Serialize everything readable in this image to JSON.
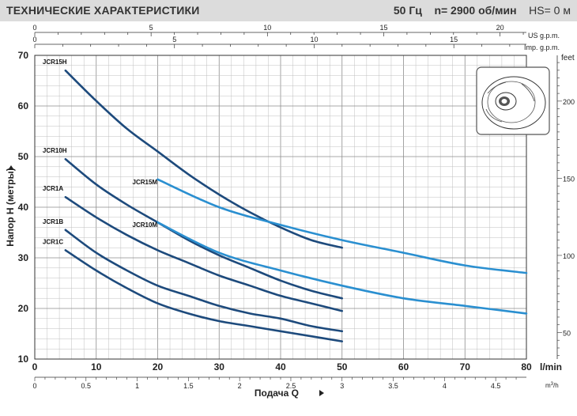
{
  "header": {
    "title": "ТЕХНИЧЕСКИЕ ХАРАКТЕРИСТИКИ",
    "freq": "50 Гц",
    "speed_label": "n= 2900",
    "speed_unit": "об/мин",
    "hs": "HS= 0 м"
  },
  "colors": {
    "dark_curve": "#1d4a7c",
    "light_curve": "#2a8fd0",
    "grid": "#bfbfbf",
    "header_bg": "#dcdcdc"
  },
  "chart_data": {
    "type": "line",
    "title": "",
    "xlabel": "Подача Q",
    "ylabel": "Напор H (метры)",
    "x_unit": "l/min",
    "xlim": [
      0,
      80
    ],
    "ylim": [
      10,
      70
    ],
    "grid": true,
    "x_ticks": [
      0,
      10,
      20,
      30,
      40,
      50,
      60,
      70,
      80
    ],
    "y_ticks": [
      10,
      20,
      30,
      40,
      50,
      60,
      70
    ],
    "secondary_axes": {
      "us_gpm": {
        "label": "US g.p.m.",
        "ticks": [
          0,
          5,
          10,
          15,
          20
        ]
      },
      "imp_gpm": {
        "label": "Imp. g.p.m.",
        "ticks": [
          0,
          5,
          10,
          15
        ]
      },
      "feet": {
        "label": "feet",
        "ticks": [
          50,
          100,
          150,
          200
        ]
      },
      "m3h": {
        "label": "m³/h",
        "ticks": [
          "0",
          "0.5",
          "1",
          "1.5",
          "2",
          "2.5",
          "3",
          "3.5",
          "4",
          "4.5"
        ]
      }
    },
    "series": [
      {
        "name": "JCR15H",
        "color": "dark",
        "x": [
          5,
          10,
          15,
          20,
          25,
          30,
          35,
          40,
          45,
          50
        ],
        "y": [
          67,
          61,
          55.5,
          51,
          46.5,
          42.5,
          39,
          36,
          33.5,
          32
        ]
      },
      {
        "name": "JCR10H",
        "color": "dark",
        "x": [
          5,
          10,
          15,
          20,
          25,
          30,
          35,
          40,
          45,
          50
        ],
        "y": [
          49.5,
          44.5,
          40.5,
          37,
          33.5,
          30.5,
          28,
          25.5,
          23.5,
          22
        ]
      },
      {
        "name": "JCR1A",
        "color": "dark",
        "x": [
          5,
          10,
          15,
          20,
          25,
          30,
          35,
          40,
          45,
          50
        ],
        "y": [
          42,
          38,
          34.5,
          31.5,
          29,
          26.5,
          24.5,
          22.5,
          21,
          19.5
        ]
      },
      {
        "name": "JCR1B",
        "color": "dark",
        "x": [
          5,
          10,
          15,
          20,
          25,
          30,
          35,
          40,
          45,
          50
        ],
        "y": [
          35.5,
          31,
          27.5,
          24.5,
          22.5,
          20.5,
          19,
          18,
          16.5,
          15.5
        ]
      },
      {
        "name": "JCR1C",
        "color": "dark",
        "x": [
          5,
          10,
          15,
          20,
          25,
          30,
          35,
          40,
          45,
          50
        ],
        "y": [
          31.5,
          27.5,
          24,
          21,
          19,
          17.5,
          16.5,
          15.5,
          14.5,
          13.5
        ]
      },
      {
        "name": "JCR15M",
        "color": "light",
        "x": [
          20,
          30,
          40,
          50,
          60,
          70,
          80
        ],
        "y": [
          45.5,
          40,
          36.5,
          33.5,
          31,
          28.5,
          27
        ]
      },
      {
        "name": "JCR10M",
        "color": "light",
        "x": [
          20,
          30,
          40,
          50,
          60,
          70,
          80
        ],
        "y": [
          37,
          31,
          27.5,
          24.5,
          22,
          20.5,
          19
        ]
      }
    ]
  }
}
